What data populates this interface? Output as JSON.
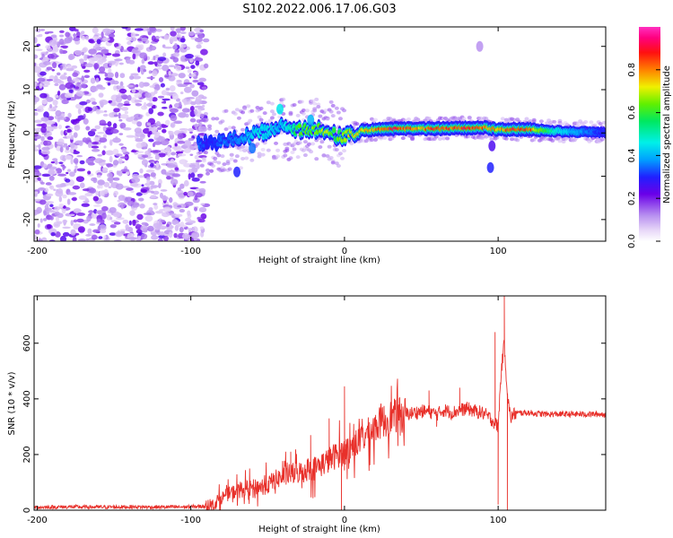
{
  "title": "S102.2022.006.17.06.G03",
  "chart_data": [
    {
      "type": "heatmap",
      "name": "spectrogram",
      "xlabel": "Height of straight line (km)",
      "ylabel": "Frequency (Hz)",
      "xlim": [
        -202,
        170
      ],
      "ylim": [
        -25,
        24.5
      ],
      "xticks": [
        -200,
        -100,
        0,
        100
      ],
      "xtick_labels": [
        "-200",
        "-100",
        "0",
        "100"
      ],
      "yticks": [
        -20,
        -10,
        0,
        10,
        20
      ],
      "ytick_labels": [
        "-20",
        "-10",
        "0",
        "10",
        "20"
      ],
      "colorbar": {
        "label": "Normalized spectral amplitude",
        "range": [
          0,
          1
        ],
        "ticks": [
          0.0,
          0.2,
          0.4,
          0.6,
          0.8
        ],
        "tick_labels": [
          "0.0",
          "0.2",
          "0.4",
          "0.6",
          "0.8"
        ],
        "colormap": "purple-blue-cyan-green-yellow-red-magenta"
      },
      "ridge": {
        "description": "dominant frequency ridge near 0-1 Hz",
        "x": [
          -95,
          -88,
          -80,
          -72,
          -64,
          -56,
          -48,
          -42,
          -36,
          -30,
          -24,
          -18,
          -10,
          -5,
          0,
          10,
          20,
          30,
          40,
          50,
          60,
          70,
          80,
          90,
          100,
          110,
          120,
          130,
          140,
          150,
          160,
          170
        ],
        "freq": [
          -2.0,
          -2.5,
          -2.0,
          -1.5,
          -0.8,
          0.0,
          0.6,
          1.5,
          0.8,
          0.6,
          0.7,
          0.8,
          0.8,
          -1.0,
          -0.6,
          0.5,
          0.8,
          1.0,
          1.0,
          1.0,
          1.0,
          1.1,
          1.2,
          1.3,
          0.8,
          0.8,
          0.8,
          0.6,
          0.4,
          0.3,
          0.2,
          0.1
        ],
        "amplitude": [
          0.35,
          0.3,
          0.35,
          0.35,
          0.4,
          0.45,
          0.45,
          0.4,
          0.5,
          0.6,
          0.65,
          0.7,
          0.7,
          0.6,
          0.7,
          0.75,
          0.8,
          0.9,
          0.85,
          0.8,
          0.9,
          0.85,
          0.9,
          0.85,
          0.8,
          0.9,
          0.9,
          0.6,
          0.45,
          0.4,
          0.35,
          0.3
        ]
      },
      "noise_region": {
        "x_range": [
          -202,
          -90
        ],
        "freq_range": [
          -25,
          24.5
        ],
        "amplitude_range": [
          0.0,
          0.25
        ]
      }
    },
    {
      "type": "line",
      "name": "snr",
      "xlabel": "Height of straight line (km)",
      "ylabel": "SNR (10 * v/v)",
      "xlim": [
        -202,
        170
      ],
      "ylim": [
        0,
        770
      ],
      "xticks": [
        -200,
        -100,
        0,
        100
      ],
      "xtick_labels": [
        "-200",
        "-100",
        "0",
        "100"
      ],
      "yticks": [
        0,
        200,
        400,
        600
      ],
      "ytick_labels": [
        "0",
        "200",
        "400",
        "600"
      ],
      "color": "#e8302a",
      "series": [
        {
          "name": "SNR",
          "x": [
            -202,
            -180,
            -160,
            -140,
            -120,
            -100,
            -90,
            -85,
            -80,
            -75,
            -70,
            -65,
            -60,
            -55,
            -50,
            -45,
            -40,
            -35,
            -30,
            -25,
            -20,
            -15,
            -10,
            -5,
            0,
            5,
            10,
            15,
            20,
            25,
            30,
            35,
            40,
            45,
            50,
            55,
            60,
            65,
            70,
            75,
            80,
            85,
            90,
            95,
            100,
            102,
            104,
            106,
            108,
            110,
            115,
            120,
            130,
            140,
            150,
            160,
            170
          ],
          "y": [
            10,
            12,
            11,
            12,
            11,
            12,
            15,
            20,
            45,
            60,
            70,
            75,
            80,
            85,
            90,
            110,
            120,
            130,
            135,
            145,
            150,
            165,
            180,
            200,
            210,
            230,
            250,
            275,
            300,
            320,
            335,
            340,
            345,
            350,
            355,
            355,
            345,
            360,
            350,
            360,
            365,
            355,
            350,
            330,
            300,
            500,
            600,
            420,
            330,
            345,
            350,
            350,
            345,
            345,
            345,
            345,
            345
          ],
          "spikes": [
            {
              "x": -35,
              "y": 210
            },
            {
              "x": -22,
              "y": 270
            },
            {
              "x": -10,
              "y": 330
            },
            {
              "x": 0,
              "y": 445
            },
            {
              "x": -2,
              "y": 0
            },
            {
              "x": 20,
              "y": 310
            },
            {
              "x": 55,
              "y": 430
            },
            {
              "x": 60,
              "y": 300
            },
            {
              "x": 75,
              "y": 440
            },
            {
              "x": 98,
              "y": 640
            },
            {
              "x": 100,
              "y": 20
            },
            {
              "x": 104,
              "y": 770
            },
            {
              "x": 106,
              "y": 0
            }
          ]
        }
      ]
    }
  ]
}
